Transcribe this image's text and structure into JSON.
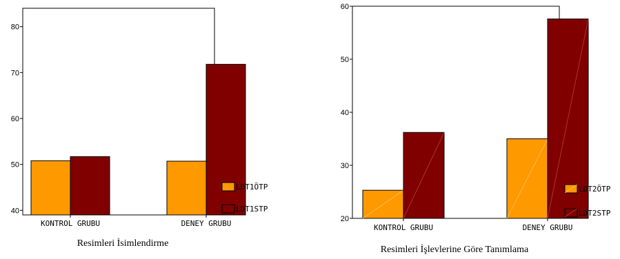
{
  "colors": {
    "orange": "#FF9900",
    "darkred": "#800000"
  },
  "chart_data": [
    {
      "type": "bar",
      "title": "Resimleri İsimlendirme",
      "categories": [
        "KONTROL GRUBU",
        "DENEY GRUBU"
      ],
      "ylim": [
        39,
        84
      ],
      "yticks": [
        40,
        50,
        60,
        70,
        80
      ],
      "series": [
        {
          "name": "LDT1ÖTP",
          "color": "#FF9900",
          "values": [
            50.8,
            50.7
          ]
        },
        {
          "name": "LDT1STP",
          "color": "#800000",
          "values": [
            51.7,
            71.8
          ]
        }
      ],
      "legend": "right"
    },
    {
      "type": "bar",
      "title": "Resimleri İşlevlerine Göre Tanımlama",
      "categories": [
        "KONTROL GRUBU",
        "DENEY GRUBU"
      ],
      "ylim": [
        20,
        60
      ],
      "yticks": [
        20,
        30,
        40,
        50,
        60
      ],
      "series": [
        {
          "name": "LDT2ÖTP",
          "color": "#FF9900",
          "values": [
            25.3,
            35.0
          ]
        },
        {
          "name": "LDT2STP",
          "color": "#800000",
          "values": [
            36.2,
            57.6
          ]
        }
      ],
      "legend": "right"
    }
  ]
}
